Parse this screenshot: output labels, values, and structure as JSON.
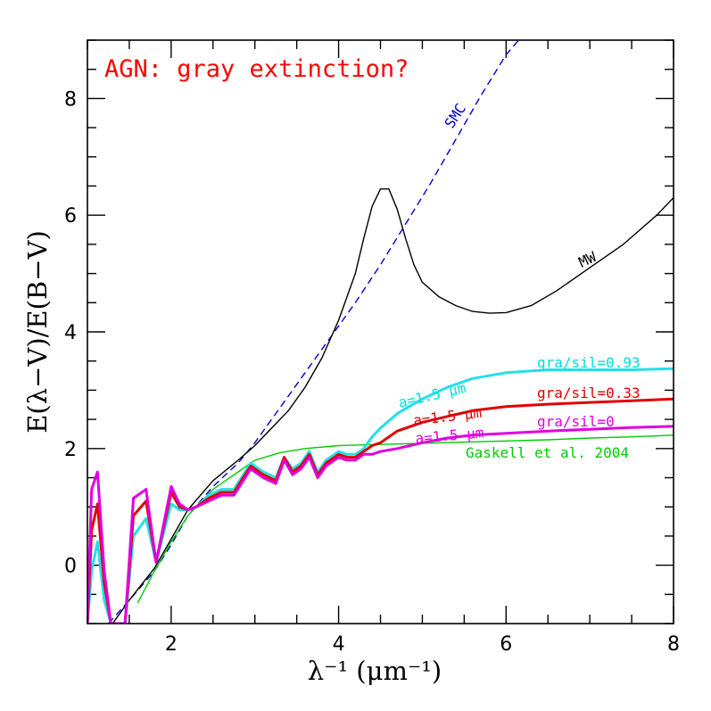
{
  "chart_data": {
    "type": "line",
    "title": "AGN: gray extinction?",
    "title_color": "#ff0000",
    "xlabel": "λ⁻¹ (μm⁻¹)",
    "ylabel": "E(λ−V)/E(B−V)",
    "xlim": [
      1.0,
      8.0
    ],
    "ylim": [
      -1.0,
      9.0
    ],
    "xticks_major": [
      2,
      4,
      6,
      8
    ],
    "yticks_major": [
      0,
      2,
      4,
      6,
      8
    ],
    "xtick_labels": [
      "2",
      "4",
      "6",
      "8"
    ],
    "ytick_labels": [
      "0",
      "2",
      "4",
      "6",
      "8"
    ],
    "series": [
      {
        "name": "SMC",
        "label_color": "#0000cc",
        "color": "#0000cc",
        "dash": true,
        "x": [
          1.25,
          1.5,
          1.8,
          2.0,
          2.2,
          2.5,
          2.8,
          3.0,
          3.3,
          3.6,
          3.9,
          4.2,
          4.5,
          4.8,
          5.1,
          5.4,
          5.7,
          6.0,
          6.15
        ],
        "y": [
          -1.0,
          -0.6,
          -0.1,
          0.35,
          0.85,
          1.35,
          1.75,
          2.1,
          2.7,
          3.3,
          3.9,
          4.5,
          5.15,
          5.85,
          6.55,
          7.3,
          8.05,
          8.75,
          9.0
        ]
      },
      {
        "name": "MW",
        "label_color": "#000000",
        "color": "#000000",
        "dash": false,
        "x": [
          1.3,
          1.5,
          1.8,
          2.0,
          2.2,
          2.5,
          2.8,
          3.0,
          3.2,
          3.4,
          3.6,
          3.8,
          4.0,
          4.2,
          4.3,
          4.4,
          4.5,
          4.6,
          4.7,
          4.8,
          4.9,
          5.0,
          5.2,
          5.4,
          5.6,
          5.8,
          6.0,
          6.3,
          6.6,
          7.0,
          7.4,
          7.8,
          8.0
        ],
        "y": [
          -1.0,
          -0.6,
          -0.05,
          0.45,
          0.95,
          1.45,
          1.8,
          2.05,
          2.35,
          2.65,
          3.05,
          3.55,
          4.2,
          5.0,
          5.6,
          6.15,
          6.45,
          6.45,
          6.1,
          5.6,
          5.15,
          4.85,
          4.6,
          4.45,
          4.35,
          4.32,
          4.33,
          4.45,
          4.7,
          5.1,
          5.5,
          6.0,
          6.3
        ]
      },
      {
        "name": "Gaskell et al. 2004",
        "label_color": "#00cc00",
        "color": "#00cc00",
        "dash": false,
        "x": [
          1.6,
          1.8,
          2.0,
          2.2,
          2.5,
          2.8,
          3.0,
          3.3,
          3.6,
          4.0,
          4.5,
          5.0,
          5.5,
          6.0,
          6.5,
          7.0,
          7.5,
          8.0
        ],
        "y": [
          -0.65,
          -0.1,
          0.4,
          0.85,
          1.3,
          1.6,
          1.8,
          1.93,
          2.0,
          2.05,
          2.07,
          2.09,
          2.11,
          2.13,
          2.15,
          2.18,
          2.2,
          2.23
        ]
      },
      {
        "name": "gra/sil=0.93",
        "label_color": "#00dddd",
        "color": "#22e0e8",
        "dash": false,
        "x": [
          1.0,
          1.05,
          1.12,
          1.2,
          1.28,
          1.35,
          1.45,
          1.55,
          1.7,
          1.82,
          2.0,
          2.1,
          2.2,
          2.3,
          2.45,
          2.6,
          2.75,
          2.95,
          3.1,
          3.25,
          3.35,
          3.45,
          3.55,
          3.65,
          3.75,
          3.85,
          4.0,
          4.1,
          4.2,
          4.3,
          4.4,
          4.5,
          4.7,
          5.0,
          5.3,
          5.6,
          6.0,
          6.5,
          7.0,
          7.5,
          8.0
        ],
        "y": [
          -1.0,
          -0.1,
          0.4,
          -0.6,
          -1.0,
          -1.0,
          -1.0,
          0.5,
          0.8,
          0.05,
          1.05,
          0.95,
          0.95,
          1.0,
          1.2,
          1.3,
          1.3,
          1.75,
          1.6,
          1.5,
          1.85,
          1.65,
          1.75,
          1.95,
          1.6,
          1.8,
          1.95,
          1.9,
          1.9,
          2.0,
          2.2,
          2.35,
          2.6,
          2.85,
          3.05,
          3.2,
          3.3,
          3.35,
          3.35,
          3.35,
          3.37
        ]
      },
      {
        "name": "gra/sil=0.33",
        "label_color": "#dd0000",
        "color": "#e00000",
        "dash": false,
        "x": [
          1.0,
          1.05,
          1.12,
          1.2,
          1.28,
          1.35,
          1.45,
          1.55,
          1.7,
          1.82,
          2.0,
          2.1,
          2.2,
          2.3,
          2.45,
          2.6,
          2.75,
          2.95,
          3.1,
          3.25,
          3.35,
          3.45,
          3.55,
          3.65,
          3.75,
          3.85,
          4.0,
          4.1,
          4.2,
          4.3,
          4.4,
          4.5,
          4.7,
          5.0,
          5.3,
          5.6,
          6.0,
          6.5,
          7.0,
          7.5,
          8.0
        ],
        "y": [
          -1.0,
          0.6,
          1.05,
          -0.3,
          -1.0,
          -1.0,
          -1.0,
          0.85,
          1.1,
          0.05,
          1.25,
          1.0,
          0.95,
          1.0,
          1.15,
          1.25,
          1.25,
          1.7,
          1.55,
          1.45,
          1.85,
          1.6,
          1.7,
          1.9,
          1.55,
          1.75,
          1.9,
          1.85,
          1.85,
          1.95,
          2.05,
          2.1,
          2.3,
          2.45,
          2.55,
          2.65,
          2.72,
          2.76,
          2.79,
          2.82,
          2.85
        ]
      },
      {
        "name": "gra/sil=0",
        "label_color": "#dd00dd",
        "color": "#e000e0",
        "dash": false,
        "x": [
          1.0,
          1.05,
          1.12,
          1.2,
          1.28,
          1.35,
          1.45,
          1.55,
          1.7,
          1.82,
          2.0,
          2.1,
          2.2,
          2.3,
          2.45,
          2.6,
          2.75,
          2.95,
          3.1,
          3.25,
          3.35,
          3.45,
          3.55,
          3.65,
          3.75,
          3.85,
          4.0,
          4.1,
          4.2,
          4.3,
          4.4,
          4.5,
          4.7,
          5.0,
          5.3,
          5.6,
          6.0,
          6.5,
          7.0,
          7.5,
          8.0
        ],
        "y": [
          -1.0,
          1.3,
          1.6,
          -0.1,
          -1.0,
          -1.0,
          -1.0,
          1.15,
          1.3,
          0.05,
          1.35,
          1.05,
          0.95,
          1.0,
          1.1,
          1.2,
          1.2,
          1.65,
          1.5,
          1.4,
          1.8,
          1.55,
          1.65,
          1.85,
          1.5,
          1.7,
          1.85,
          1.8,
          1.8,
          1.9,
          1.9,
          1.95,
          2.0,
          2.1,
          2.18,
          2.23,
          2.26,
          2.3,
          2.33,
          2.36,
          2.38
        ]
      }
    ],
    "annotations": [
      {
        "id": "smc",
        "text": "SMC",
        "color": "#0000cc"
      },
      {
        "id": "mw",
        "text": "MW",
        "color": "#000000"
      },
      {
        "id": "gs093",
        "text": "gra/sil=0.93",
        "color": "#00dddd"
      },
      {
        "id": "gs033",
        "text": "gra/sil=0.33",
        "color": "#dd0000"
      },
      {
        "id": "gs0",
        "text": "gra/sil=0",
        "color": "#dd00dd"
      },
      {
        "id": "a_cyan",
        "text": "a=1.5 μm",
        "color": "#00dddd"
      },
      {
        "id": "a_red",
        "text": "a=1.5 μm",
        "color": "#dd0000"
      },
      {
        "id": "a_mag",
        "text": "a=1.5 μm",
        "color": "#dd00dd"
      },
      {
        "id": "gaskell",
        "text": "Gaskell et al. 2004",
        "color": "#00cc00"
      }
    ],
    "grid": false,
    "legend": "none"
  }
}
